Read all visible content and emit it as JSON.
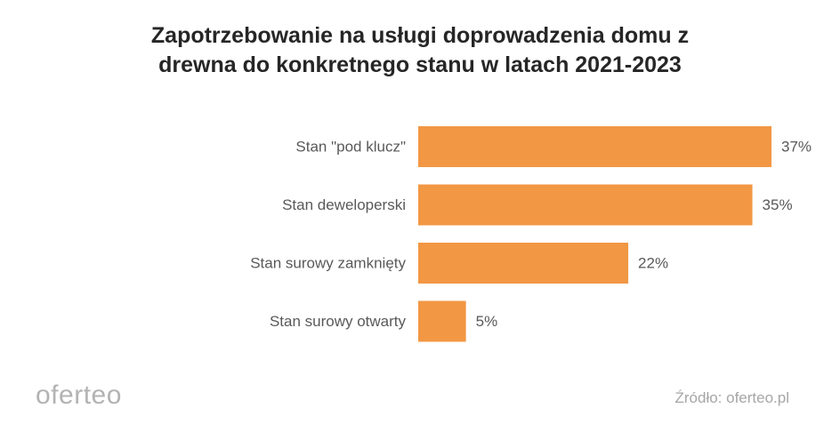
{
  "chart_data": {
    "type": "bar",
    "orientation": "horizontal",
    "title_lines": [
      "Zapotrzebowanie na usługi doprowadzenia domu z",
      "drewna do konkretnego stanu w latach 2021-2023"
    ],
    "categories": [
      "Stan \"pod klucz\"",
      "Stan deweloperski",
      "Stan surowy zamknięty",
      "Stan surowy otwarty"
    ],
    "values": [
      37,
      35,
      22,
      5
    ],
    "value_labels": [
      "37%",
      "35%",
      "22%",
      "5%"
    ],
    "unit": "%",
    "xlim": [
      0,
      37
    ],
    "bar_color": "#f29744",
    "label_color": "#595959",
    "grid": false,
    "legend": "none"
  },
  "footer": {
    "logo": "oferteo",
    "source": "Źródło: oferteo.pl"
  }
}
